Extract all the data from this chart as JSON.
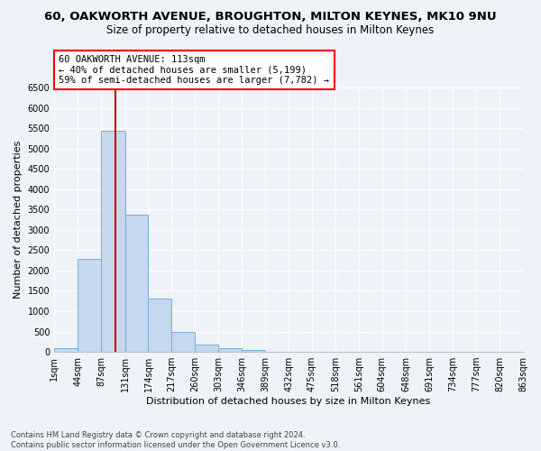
{
  "title": "60, OAKWORTH AVENUE, BROUGHTON, MILTON KEYNES, MK10 9NU",
  "subtitle": "Size of property relative to detached houses in Milton Keynes",
  "xlabel": "Distribution of detached houses by size in Milton Keynes",
  "ylabel": "Number of detached properties",
  "footer_line1": "Contains HM Land Registry data © Crown copyright and database right 2024.",
  "footer_line2": "Contains public sector information licensed under the Open Government Licence v3.0.",
  "annotation_line1": "60 OAKWORTH AVENUE: 113sqm",
  "annotation_line2": "← 40% of detached houses are smaller (5,199)",
  "annotation_line3": "59% of semi-detached houses are larger (7,782) →",
  "bar_color": "#c5d8ed",
  "bar_edge_color": "#7aafd4",
  "vline_color": "#cc0000",
  "vline_x": 113,
  "bin_edges": [
    1,
    44,
    87,
    131,
    174,
    217,
    260,
    303,
    346,
    389,
    432,
    475,
    518,
    561,
    604,
    648,
    691,
    734,
    777,
    820,
    863
  ],
  "bar_heights": [
    80,
    2280,
    5430,
    3380,
    1310,
    480,
    175,
    85,
    55,
    0,
    0,
    0,
    0,
    0,
    0,
    0,
    0,
    0,
    0,
    0
  ],
  "ylim": [
    0,
    6500
  ],
  "yticks": [
    0,
    500,
    1000,
    1500,
    2000,
    2500,
    3000,
    3500,
    4000,
    4500,
    5000,
    5500,
    6000,
    6500
  ],
  "bg_color": "#eef2f9",
  "grid_color": "#ffffff",
  "title_fontsize": 9.5,
  "subtitle_fontsize": 8.5,
  "xlabel_fontsize": 8,
  "ylabel_fontsize": 8,
  "annotation_fontsize": 7.5,
  "tick_fontsize": 7,
  "footer_fontsize": 6
}
